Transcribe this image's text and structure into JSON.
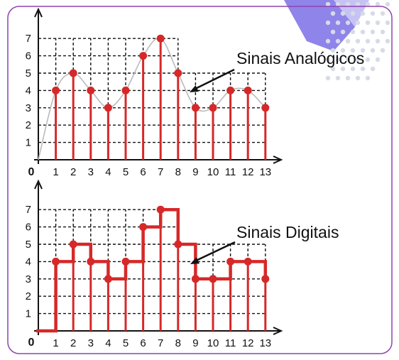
{
  "colors": {
    "panel_border": "#8e44ad",
    "signal": "#d62828",
    "grid": "#111111",
    "analog_curve": "#bbbbbb",
    "decor_purple": "#7b6ee6",
    "decor_dots": "#d7dbe6"
  },
  "chart_data": [
    {
      "type": "stem",
      "annotation": "Sinais Analógicos",
      "origin_label": "0",
      "x": [
        1,
        2,
        3,
        4,
        5,
        6,
        7,
        8,
        9,
        10,
        11,
        12,
        13
      ],
      "y": [
        4,
        5,
        4,
        3,
        4,
        6,
        7,
        5,
        3,
        3,
        4,
        4,
        3
      ],
      "xlim": [
        0,
        13
      ],
      "ylim": [
        0,
        7
      ],
      "x_ticks": [
        "1",
        "2",
        "3",
        "4",
        "5",
        "6",
        "7",
        "8",
        "9",
        "10",
        "11",
        "12",
        "13"
      ],
      "y_ticks": [
        "1",
        "2",
        "3",
        "4",
        "5",
        "6",
        "7"
      ],
      "grid": "dashed",
      "underlying_curve": true
    },
    {
      "type": "step",
      "annotation": "Sinais Digitais",
      "origin_label": "0",
      "x": [
        1,
        2,
        3,
        4,
        5,
        6,
        7,
        8,
        9,
        10,
        11,
        12,
        13
      ],
      "y": [
        4,
        5,
        4,
        3,
        4,
        6,
        7,
        5,
        3,
        3,
        4,
        4,
        3
      ],
      "xlim": [
        0,
        13
      ],
      "ylim": [
        0,
        7
      ],
      "x_ticks": [
        "1",
        "2",
        "3",
        "4",
        "5",
        "6",
        "7",
        "8",
        "9",
        "10",
        "11",
        "12",
        "13"
      ],
      "y_ticks": [
        "1",
        "2",
        "3",
        "4",
        "5",
        "6",
        "7"
      ],
      "grid": "dashed"
    }
  ]
}
